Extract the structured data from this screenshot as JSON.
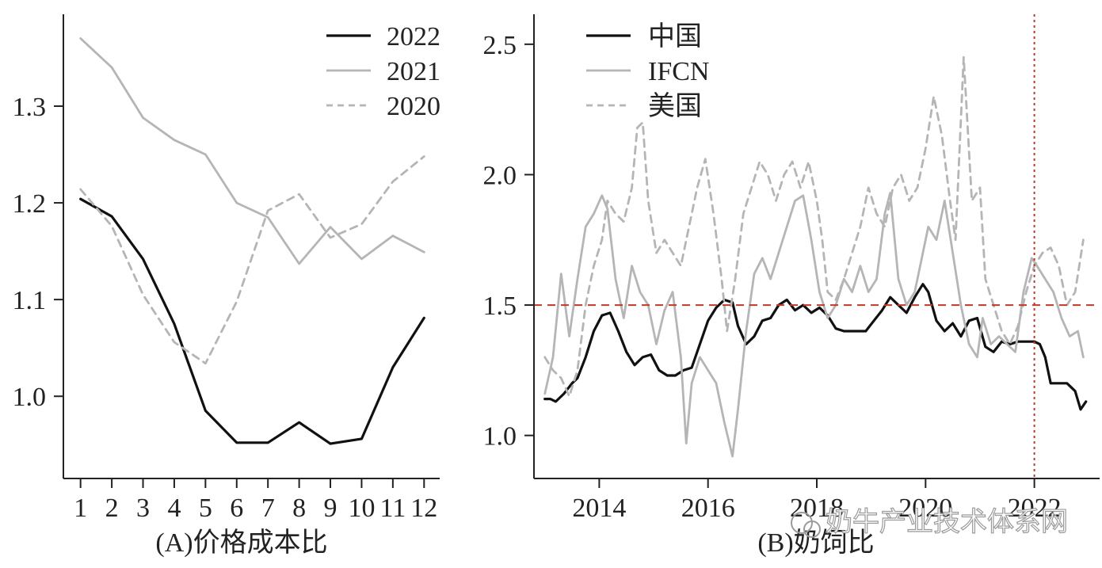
{
  "chart_data": [
    {
      "type": "line",
      "panel": "A",
      "caption": "(A)价格成本比",
      "x": [
        1,
        2,
        3,
        4,
        5,
        6,
        7,
        8,
        9,
        10,
        11,
        12
      ],
      "xticks": [
        "1",
        "2",
        "3",
        "4",
        "5",
        "6",
        "7",
        "8",
        "9",
        "10",
        "11",
        "12"
      ],
      "xlim": [
        0.45,
        12.5
      ],
      "ylim": [
        0.915,
        1.395
      ],
      "yticks": [
        1.0,
        1.1,
        1.2,
        1.3
      ],
      "ytick_labels": [
        "1.0",
        "1.1",
        "1.2",
        "1.3"
      ],
      "legend_position": "top-right",
      "grid": false,
      "series": [
        {
          "name": "2022",
          "color": "#111111",
          "style": "solid",
          "values": [
            1.204,
            1.186,
            1.142,
            1.075,
            0.985,
            0.952,
            0.952,
            0.973,
            0.951,
            0.956,
            1.03,
            1.081
          ]
        },
        {
          "name": "2021",
          "color": "#b5b5b5",
          "style": "solid",
          "values": [
            1.37,
            1.34,
            1.288,
            1.265,
            1.25,
            1.2,
            1.185,
            1.137,
            1.175,
            1.142,
            1.166,
            1.149
          ]
        },
        {
          "name": "2020",
          "color": "#b5b5b5",
          "style": "dashed",
          "values": [
            1.214,
            1.176,
            1.105,
            1.056,
            1.034,
            1.098,
            1.192,
            1.209,
            1.164,
            1.178,
            1.222,
            1.248
          ]
        }
      ]
    },
    {
      "type": "line",
      "panel": "B",
      "caption": "(B)奶饲比",
      "xlim": [
        2012.8,
        2023.2
      ],
      "ylim": [
        0.835,
        2.615
      ],
      "xticks": [
        2014,
        2016,
        2018,
        2020,
        2022
      ],
      "xtick_labels": [
        "2014",
        "2016",
        "2018",
        "2020",
        "2022"
      ],
      "yticks": [
        1.0,
        1.5,
        2.0,
        2.5
      ],
      "ytick_labels": [
        "1.0",
        "1.5",
        "2.0",
        "2.5"
      ],
      "legend_position": "top-left",
      "grid": false,
      "reference_lines": {
        "horizontal_y": 1.5,
        "vertical_x": 2022,
        "color": "#c0392b",
        "style": "dashed"
      },
      "series": [
        {
          "name": "中国",
          "color": "#111111",
          "style": "solid",
          "x": [
            2013.0,
            2013.1,
            2013.2,
            2013.35,
            2013.5,
            2013.6,
            2013.75,
            2013.9,
            2014.05,
            2014.2,
            2014.35,
            2014.5,
            2014.65,
            2014.8,
            2014.95,
            2015.1,
            2015.25,
            2015.4,
            2015.55,
            2015.7,
            2015.85,
            2016.0,
            2016.15,
            2016.3,
            2016.45,
            2016.55,
            2016.7,
            2016.85,
            2017.0,
            2017.15,
            2017.3,
            2017.45,
            2017.6,
            2017.75,
            2017.9,
            2018.05,
            2018.2,
            2018.35,
            2018.5,
            2018.7,
            2018.9,
            2019.05,
            2019.2,
            2019.35,
            2019.5,
            2019.65,
            2019.8,
            2019.95,
            2020.05,
            2020.2,
            2020.35,
            2020.5,
            2020.65,
            2020.8,
            2020.95,
            2021.1,
            2021.25,
            2021.4,
            2021.55,
            2021.7,
            2021.85,
            2022.0,
            2022.1,
            2022.2,
            2022.3,
            2022.45,
            2022.6,
            2022.75,
            2022.85,
            2022.95
          ],
          "values": [
            1.14,
            1.14,
            1.13,
            1.16,
            1.2,
            1.22,
            1.3,
            1.4,
            1.46,
            1.47,
            1.4,
            1.32,
            1.27,
            1.3,
            1.31,
            1.25,
            1.23,
            1.23,
            1.25,
            1.26,
            1.35,
            1.44,
            1.49,
            1.52,
            1.51,
            1.42,
            1.35,
            1.38,
            1.44,
            1.45,
            1.5,
            1.52,
            1.48,
            1.5,
            1.47,
            1.49,
            1.46,
            1.41,
            1.4,
            1.4,
            1.4,
            1.44,
            1.48,
            1.53,
            1.5,
            1.47,
            1.53,
            1.58,
            1.55,
            1.44,
            1.4,
            1.43,
            1.38,
            1.44,
            1.45,
            1.34,
            1.32,
            1.36,
            1.35,
            1.36,
            1.36,
            1.36,
            1.35,
            1.3,
            1.2,
            1.2,
            1.2,
            1.17,
            1.1,
            1.13
          ]
        },
        {
          "name": "IFCN",
          "color": "#b5b5b5",
          "style": "solid",
          "x": [
            2013.0,
            2013.15,
            2013.3,
            2013.45,
            2013.6,
            2013.75,
            2013.9,
            2014.05,
            2014.15,
            2014.3,
            2014.45,
            2014.6,
            2014.75,
            2014.9,
            2015.05,
            2015.2,
            2015.35,
            2015.5,
            2015.6,
            2015.7,
            2015.85,
            2016.0,
            2016.15,
            2016.3,
            2016.45,
            2016.55,
            2016.7,
            2016.85,
            2017.0,
            2017.15,
            2017.3,
            2017.45,
            2017.6,
            2017.75,
            2017.9,
            2018.05,
            2018.2,
            2018.35,
            2018.5,
            2018.65,
            2018.8,
            2018.95,
            2019.1,
            2019.25,
            2019.35,
            2019.5,
            2019.65,
            2019.8,
            2019.95,
            2020.05,
            2020.2,
            2020.35,
            2020.5,
            2020.65,
            2020.8,
            2020.95,
            2021.05,
            2021.2,
            2021.35,
            2021.5,
            2021.65,
            2021.8,
            2021.95,
            2022.05,
            2022.2,
            2022.35,
            2022.5,
            2022.65,
            2022.8,
            2022.9
          ],
          "values": [
            1.16,
            1.3,
            1.62,
            1.38,
            1.6,
            1.8,
            1.85,
            1.92,
            1.87,
            1.6,
            1.45,
            1.65,
            1.55,
            1.5,
            1.35,
            1.48,
            1.55,
            1.3,
            0.97,
            1.2,
            1.3,
            1.25,
            1.2,
            1.05,
            0.92,
            1.1,
            1.4,
            1.62,
            1.68,
            1.6,
            1.7,
            1.8,
            1.9,
            1.92,
            1.75,
            1.55,
            1.45,
            1.5,
            1.6,
            1.55,
            1.65,
            1.55,
            1.6,
            1.85,
            1.93,
            1.6,
            1.5,
            1.55,
            1.7,
            1.8,
            1.75,
            1.9,
            1.7,
            1.5,
            1.35,
            1.3,
            1.45,
            1.35,
            1.38,
            1.35,
            1.32,
            1.55,
            1.68,
            1.65,
            1.6,
            1.55,
            1.45,
            1.38,
            1.4,
            1.3
          ]
        },
        {
          "name": "美国",
          "color": "#b5b5b5",
          "style": "dashed",
          "x": [
            2013.0,
            2013.15,
            2013.3,
            2013.45,
            2013.6,
            2013.75,
            2013.9,
            2014.05,
            2014.15,
            2014.3,
            2014.45,
            2014.6,
            2014.7,
            2014.8,
            2014.9,
            2015.05,
            2015.2,
            2015.35,
            2015.5,
            2015.65,
            2015.8,
            2015.95,
            2016.1,
            2016.25,
            2016.35,
            2016.5,
            2016.65,
            2016.8,
            2016.95,
            2017.1,
            2017.25,
            2017.4,
            2017.55,
            2017.7,
            2017.85,
            2018.0,
            2018.1,
            2018.2,
            2018.35,
            2018.5,
            2018.65,
            2018.8,
            2018.95,
            2019.1,
            2019.25,
            2019.4,
            2019.55,
            2019.7,
            2019.85,
            2020.0,
            2020.15,
            2020.3,
            2020.45,
            2020.55,
            2020.7,
            2020.85,
            2021.0,
            2021.1,
            2021.25,
            2021.4,
            2021.55,
            2021.7,
            2021.85,
            2022.0,
            2022.15,
            2022.3,
            2022.45,
            2022.6,
            2022.75,
            2022.9
          ],
          "values": [
            1.3,
            1.25,
            1.22,
            1.15,
            1.25,
            1.5,
            1.65,
            1.75,
            1.9,
            1.85,
            1.82,
            1.95,
            2.18,
            2.2,
            1.9,
            1.7,
            1.75,
            1.7,
            1.65,
            1.8,
            1.95,
            2.06,
            1.85,
            1.6,
            1.4,
            1.6,
            1.85,
            1.95,
            2.05,
            2.0,
            1.9,
            2.0,
            2.05,
            1.95,
            2.05,
            1.9,
            1.75,
            1.55,
            1.52,
            1.6,
            1.7,
            1.8,
            1.95,
            1.85,
            1.8,
            1.95,
            2.0,
            1.9,
            1.95,
            2.1,
            2.3,
            2.15,
            1.9,
            1.75,
            2.45,
            1.9,
            1.95,
            1.6,
            1.5,
            1.4,
            1.35,
            1.42,
            1.55,
            1.65,
            1.7,
            1.72,
            1.65,
            1.5,
            1.55,
            1.75
          ]
        }
      ]
    }
  ],
  "watermark": "奶牛产业技术体系网"
}
